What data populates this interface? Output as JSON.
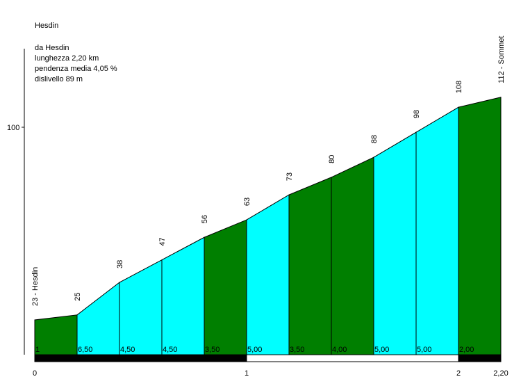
{
  "chart_data": {
    "type": "profile",
    "title": "Hesdin",
    "info": [
      "da Hesdin",
      "lunghezza 2,20 km",
      "pendenza media 4,05 %",
      "dislivello 89 m"
    ],
    "x": [
      0,
      0.2,
      0.4,
      0.6,
      0.8,
      1.0,
      1.2,
      1.4,
      1.6,
      1.8,
      2.0,
      2.2
    ],
    "values": [
      23,
      25,
      38,
      47,
      56,
      63,
      73,
      80,
      88,
      98,
      108,
      112
    ],
    "value_labels": [
      "23 - Hesdin",
      "25",
      "38",
      "47",
      "56",
      "63",
      "73",
      "80",
      "88",
      "98",
      "108",
      "112 - Sommet"
    ],
    "gradients": [
      1,
      6.5,
      4.5,
      4.5,
      3.5,
      5,
      3.5,
      4,
      5,
      5,
      2
    ],
    "gradient_labels": [
      "1",
      "6,50",
      "4,50",
      "4,50",
      "3,50",
      "5,00",
      "3,50",
      "4,00",
      "5,00",
      "5,00",
      "2,00"
    ],
    "segment_colors": [
      "#007f00",
      "#00ffff",
      "#00ffff",
      "#00ffff",
      "#007f00",
      "#00ffff",
      "#007f00",
      "#007f00",
      "#00ffff",
      "#00ffff",
      "#007f00"
    ],
    "xlim": [
      0,
      2.2
    ],
    "xticks": [
      0,
      1,
      2,
      {
        "value": 2.2,
        "label": "2,20"
      }
    ],
    "ylim": [
      9.1,
      131.4
    ],
    "yticks": [
      100
    ]
  }
}
